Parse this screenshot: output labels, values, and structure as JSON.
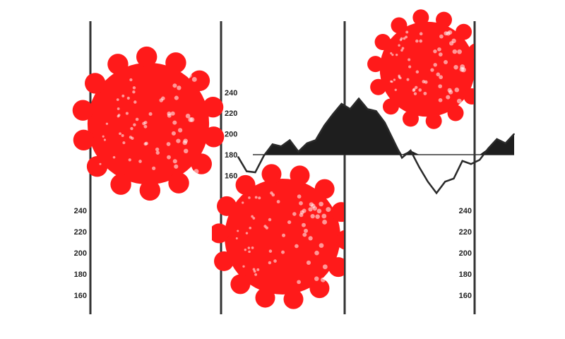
{
  "chart_data": {
    "type": "area",
    "title": "",
    "xlabel": "",
    "ylabel": "",
    "ylim": [
      150,
      245
    ],
    "baseline": 180,
    "y_ticks": [
      "240",
      "220",
      "200",
      "180",
      "160"
    ],
    "values": [
      178,
      164,
      163,
      179,
      190,
      188,
      194,
      183,
      191,
      194,
      208,
      219,
      229,
      224,
      234,
      224,
      222,
      211,
      194,
      177,
      184,
      168,
      154,
      143,
      154,
      157,
      174,
      171,
      175,
      186,
      195,
      191,
      200
    ],
    "grid": false,
    "colors": {
      "line": "#2a2a2a",
      "fill": "#1e1e1e",
      "virus": "#ff1a1a"
    }
  },
  "left_axis_ticks": [
    "240",
    "220",
    "200",
    "180",
    "160"
  ],
  "right_axis_ticks": [
    "240",
    "220",
    "200",
    "180",
    "160"
  ]
}
